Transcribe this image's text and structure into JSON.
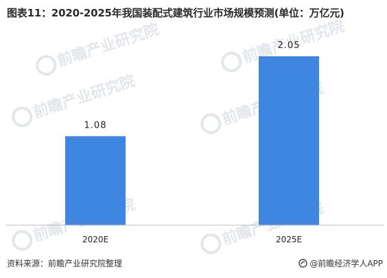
{
  "header": {
    "title": "图表11：2020-2025年我国装配式建筑行业市场规模预测(单位：万亿元)"
  },
  "watermark": {
    "text": "前瞻产业研究院",
    "icon": "qianzhan-logo-icon"
  },
  "footer": {
    "source": "资料来源：前瞻产业研究院整理",
    "brand": "@前瞻经济学人APP",
    "brand_icon": "qianzhan-circle-icon"
  },
  "colors": {
    "bar": "#3f86e0",
    "axis": "#bfbfbf",
    "label": "#222222",
    "watermark": "#e3e6ea"
  },
  "chart_data": {
    "type": "bar",
    "categories": [
      "2020E",
      "2025E"
    ],
    "values": [
      1.08,
      2.05
    ],
    "value_labels": [
      "1.08",
      "2.05"
    ],
    "title": "图表11：2020-2025年我国装配式建筑行业市场规模预测(单位：万亿元)",
    "xlabel": "",
    "ylabel": "",
    "ylim": [
      0,
      2.4
    ],
    "grid": false,
    "legend": "none"
  }
}
